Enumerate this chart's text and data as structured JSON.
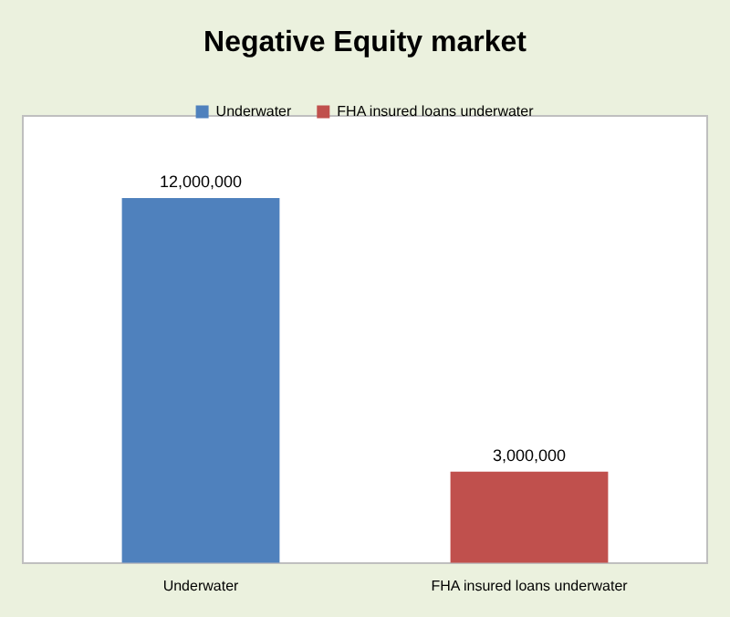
{
  "chart_data": {
    "type": "bar",
    "title": "Negative Equity market",
    "categories": [
      "Underwater",
      "FHA insured loans underwater"
    ],
    "series": [
      {
        "name": "Underwater",
        "color": "#4f81bd",
        "values": [
          12000000,
          null
        ],
        "value_labels": [
          "12,000,000",
          null
        ]
      },
      {
        "name": "FHA insured loans underwater",
        "color": "#c0504d",
        "values": [
          null,
          3000000
        ],
        "value_labels": [
          null,
          "3,000,000"
        ]
      }
    ],
    "stacked": true,
    "legend": "top"
  }
}
